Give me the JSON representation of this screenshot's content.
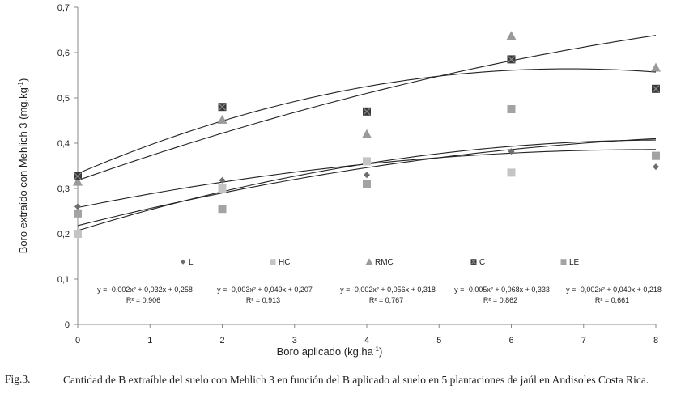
{
  "chart_data": {
    "type": "scatter",
    "xlabel": "Boro aplicado (kg.ha",
    "xlabel_sup": "-1",
    "xlabel_end": ")",
    "ylabel": "Boro extraído con Mehlich 3 (mg.kg",
    "ylabel_sup": "-1",
    "ylabel_end": ")",
    "xlim": [
      0,
      8
    ],
    "ylim": [
      0,
      0.7
    ],
    "x_ticks": [
      "0",
      "1",
      "2",
      "3",
      "4",
      "5",
      "6",
      "7",
      "8"
    ],
    "y_ticks": [
      "0",
      "0,1",
      "0,2",
      "0,3",
      "0,4",
      "0,5",
      "0,6",
      "0,7"
    ],
    "grid": false,
    "legend_position": "inside-bottom",
    "series": [
      {
        "name": "L",
        "marker": "diamond",
        "color": "#6d6d6d",
        "x": [
          0,
          2,
          4,
          6,
          8
        ],
        "y": [
          0.26,
          0.318,
          0.33,
          0.382,
          0.348
        ],
        "trend": [
          -0.002,
          0.032,
          0.258
        ],
        "equation": "y = -0,002x² + 0,032x + 0,258",
        "r2": "R² = 0,906"
      },
      {
        "name": "HC",
        "marker": "square",
        "color": "#c4c4c4",
        "x": [
          0,
          2,
          4,
          6,
          8
        ],
        "y": [
          0.2,
          0.3,
          0.36,
          0.335,
          0.372
        ],
        "trend": [
          -0.003,
          0.049,
          0.207
        ],
        "equation": "y = -0,003x² + 0,049x + 0,207",
        "r2": "R² = 0,913"
      },
      {
        "name": "RMC",
        "marker": "triangle",
        "color": "#9a9a9a",
        "x": [
          0,
          2,
          4,
          6,
          8
        ],
        "y": [
          0.315,
          0.452,
          0.42,
          0.637,
          0.567
        ],
        "trend": [
          -0.002,
          0.056,
          0.318
        ],
        "equation": "y = -0,002x² + 0,056x + 0,318",
        "r2": "R² = 0,767"
      },
      {
        "name": "C",
        "marker": "xsquare",
        "color": "#3a3a3a",
        "x": [
          0,
          2,
          4,
          6,
          8
        ],
        "y": [
          0.327,
          0.48,
          0.47,
          0.585,
          0.52
        ],
        "trend": [
          -0.005,
          0.068,
          0.333
        ],
        "equation": "y = -0,005x² + 0,068x + 0,333",
        "r2": "R² = 0,862"
      },
      {
        "name": "LE",
        "marker": "square",
        "color": "#a3a3a3",
        "x": [
          0,
          2,
          4,
          6,
          8
        ],
        "y": [
          0.245,
          0.255,
          0.31,
          0.475,
          0.372
        ],
        "trend": [
          -0.002,
          0.04,
          0.218
        ],
        "equation": "y = -0,002x² + 0,040x + 0,218",
        "r2": "R² = 0,661"
      }
    ]
  },
  "caption": {
    "label": "Fig.3.",
    "text": "Cantidad de B extraíble del suelo con Mehlich 3 en función del B aplicado al suelo en 5 plantaciones de jaúl en Andisoles Costa Rica."
  }
}
